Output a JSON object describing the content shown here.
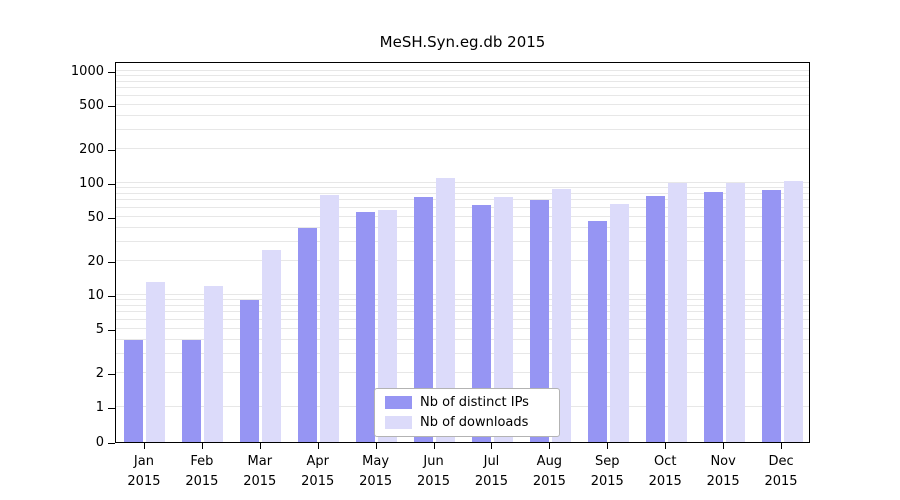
{
  "title": "MeSH.Syn.eg.db 2015",
  "chart_data": {
    "type": "bar",
    "title": "MeSH.Syn.eg.db 2015",
    "categories": [
      "Jan 2015",
      "Feb 2015",
      "Mar 2015",
      "Apr 2015",
      "May 2015",
      "Jun 2015",
      "Jul 2015",
      "Aug 2015",
      "Sep 2015",
      "Oct 2015",
      "Nov 2015",
      "Dec 2015"
    ],
    "category_line1": [
      "Jan",
      "Feb",
      "Mar",
      "Apr",
      "May",
      "Jun",
      "Jul",
      "Aug",
      "Sep",
      "Oct",
      "Nov",
      "Dec"
    ],
    "category_line2": [
      "2015",
      "2015",
      "2015",
      "2015",
      "2015",
      "2015",
      "2015",
      "2015",
      "2015",
      "2015",
      "2015",
      "2015"
    ],
    "series": [
      {
        "name": "Nb of distinct IPs",
        "color": "#9695f3",
        "values": [
          4,
          4,
          9,
          40,
          55,
          75,
          63,
          70,
          46,
          77,
          83,
          87
        ]
      },
      {
        "name": "Nb of downloads",
        "color": "#dcdbfa",
        "values": [
          13,
          12,
          25,
          78,
          58,
          110,
          75,
          88,
          65,
          100,
          100,
          105
        ]
      }
    ],
    "y_axis": {
      "ticks": [
        0,
        1,
        2,
        5,
        10,
        20,
        50,
        100,
        200,
        500,
        1000
      ],
      "scale": "logarithmic with 0 and 1 shown",
      "ylim": [
        0,
        1000
      ]
    },
    "xlabel": "",
    "ylabel": "",
    "grid": "horizontal light-gray lines at log minor and major ticks",
    "legend_position": "bottom-center inside plot"
  },
  "colors": {
    "axis": "#000000",
    "gridline": "#e7e7e7",
    "legend_border": "#b3b3b3",
    "background": "#ffffff",
    "bar_distinct_ips": "#9695f3",
    "bar_downloads": "#dcdbfa"
  }
}
